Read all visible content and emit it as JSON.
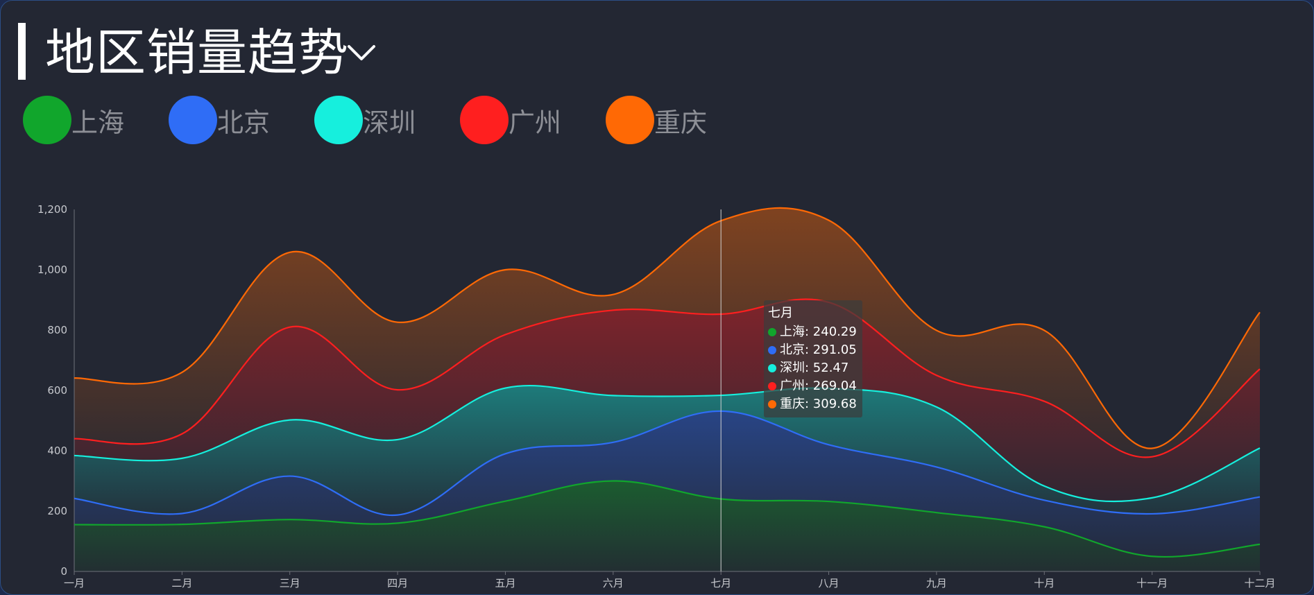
{
  "header": {
    "title": "地区销量趋势"
  },
  "colors": {
    "上海": "#11a62c",
    "北京": "#2f6df6",
    "深圳": "#16efdd",
    "广州": "#ff1f1f",
    "重庆": "#ff6905"
  },
  "legend": [
    {
      "label": "上海",
      "color": "#11a62c"
    },
    {
      "label": "北京",
      "color": "#2f6df6"
    },
    {
      "label": "深圳",
      "color": "#16efdd"
    },
    {
      "label": "广州",
      "color": "#ff1f1f"
    },
    {
      "label": "重庆",
      "color": "#ff6905"
    }
  ],
  "tooltip": {
    "title": "七月",
    "rows": [
      {
        "label": "上海: 240.29",
        "color": "#11a62c"
      },
      {
        "label": "北京: 291.05",
        "color": "#2f6df6"
      },
      {
        "label": "深圳: 52.47",
        "color": "#16efdd"
      },
      {
        "label": "广州: 269.04",
        "color": "#ff1f1f"
      },
      {
        "label": "重庆: 309.68",
        "color": "#ff6905"
      }
    ]
  },
  "chart_data": {
    "type": "area",
    "stacked": true,
    "smooth": true,
    "title": "地区销量趋势",
    "categories": [
      "一月",
      "二月",
      "三月",
      "四月",
      "五月",
      "六月",
      "七月",
      "八月",
      "九月",
      "十月",
      "十一月",
      "十二月"
    ],
    "ylim": [
      0,
      1200
    ],
    "yticks": [
      "0",
      "200",
      "400",
      "600",
      "800",
      "1,000",
      "1,200"
    ],
    "highlight_index": 6,
    "series": [
      {
        "name": "上海",
        "color": "#11a62c",
        "values": [
          155,
          156,
          172,
          160,
          233,
          300,
          240.29,
          232,
          195,
          148,
          50,
          90
        ]
      },
      {
        "name": "北京",
        "color": "#2f6df6",
        "values": [
          87,
          36,
          144,
          27,
          157,
          128,
          291.05,
          188,
          151,
          88,
          141,
          157
        ]
      },
      {
        "name": "深圳",
        "color": "#16efdd",
        "values": [
          142,
          183,
          186,
          250,
          218,
          155,
          52.47,
          187,
          199,
          47,
          53,
          162
        ]
      },
      {
        "name": "广州",
        "color": "#ff1f1f",
        "values": [
          56,
          81,
          308,
          165,
          177,
          283,
          269.04,
          285,
          105,
          281,
          136,
          262
        ]
      },
      {
        "name": "重庆",
        "color": "#ff6905",
        "values": [
          201,
          204,
          248,
          224,
          215,
          52,
          309.68,
          272,
          149,
          235,
          28,
          188
        ]
      }
    ]
  }
}
